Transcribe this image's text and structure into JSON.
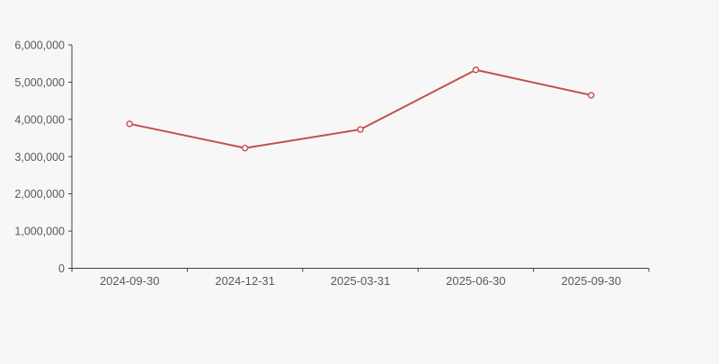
{
  "page": {
    "background_color": "#f7f7f7"
  },
  "chart_data": {
    "type": "line",
    "title": "",
    "xlabel": "",
    "ylabel": "",
    "categories": [
      "2024-09-30",
      "2024-12-31",
      "2025-03-31",
      "2025-06-30",
      "2025-09-30"
    ],
    "series": [
      {
        "name": "value",
        "values": [
          3880000,
          3230000,
          3730000,
          5330000,
          4650000
        ],
        "color": "#c2504d",
        "marker": {
          "shape": "open-circle",
          "radius": 3,
          "fill": "#fdf4f3",
          "stroke_width": 1.4
        },
        "line_width": 2
      }
    ],
    "ylim": [
      0,
      6000000
    ],
    "ytick_interval": 1000000,
    "ytick_labels": [
      "0",
      "1,000,000",
      "2,000,000",
      "3,000,000",
      "4,000,000",
      "5,000,000",
      "6,000,000"
    ],
    "grid": false,
    "legend_position": "none",
    "axis_color": "#3f3f3f",
    "tick_label_color": "#595959"
  }
}
